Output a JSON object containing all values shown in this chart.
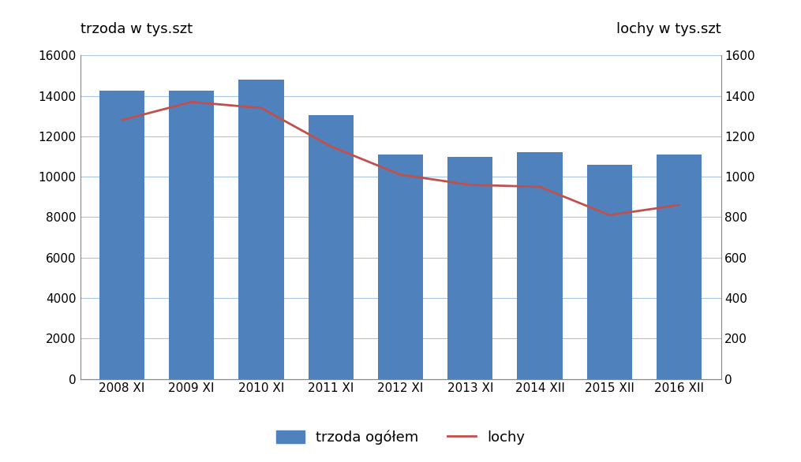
{
  "categories": [
    "2008 XI",
    "2009 XI",
    "2010 XI",
    "2011 XI",
    "2012 XI",
    "2013 XI",
    "2014 XII",
    "2015 XII",
    "2016 XII"
  ],
  "trzoda_values": [
    14250,
    14250,
    14800,
    13050,
    11100,
    11000,
    11200,
    10600,
    11100
  ],
  "lochy_values": [
    1280,
    1370,
    1340,
    1150,
    1010,
    960,
    950,
    810,
    860
  ],
  "bar_color": "#4F81BD",
  "line_color": "#C0504D",
  "ylabel_left": "trzoda w tys.szt",
  "ylabel_right": "lochy w tys.szt",
  "ylim_left": [
    0,
    16000
  ],
  "ylim_right": [
    0,
    1600
  ],
  "yticks_left": [
    0,
    2000,
    4000,
    6000,
    8000,
    10000,
    12000,
    14000,
    16000
  ],
  "yticks_right": [
    0,
    200,
    400,
    600,
    800,
    1000,
    1200,
    1400,
    1600
  ],
  "legend_bar_label": "trzoda ogółem",
  "legend_line_label": "lochy",
  "background_color": "#FFFFFF",
  "grid_color": "#A9C4E0",
  "label_fontsize": 13,
  "tick_fontsize": 11
}
